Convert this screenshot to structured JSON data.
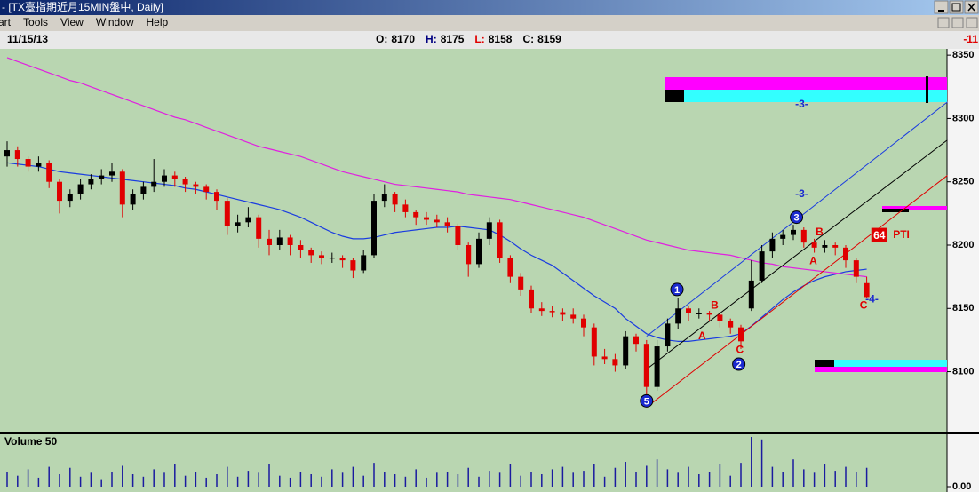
{
  "window": {
    "title": "- [TX臺指期近月15MIN盤中, Daily]",
    "menu": [
      "art",
      "Tools",
      "View",
      "Window",
      "Help"
    ],
    "info": {
      "date": "11/15/13",
      "fields": [
        {
          "label": "O:",
          "value": 8170,
          "color": "#000000"
        },
        {
          "label": "H:",
          "value": 8175,
          "color": "#000080"
        },
        {
          "label": "L:",
          "value": 8158,
          "color": "#e00000"
        },
        {
          "label": "C:",
          "value": 8159,
          "color": "#000000"
        }
      ],
      "change": -11
    }
  },
  "chart_data": {
    "type": "candlestick",
    "up_color": "#000000",
    "down_color": "#e00000",
    "ohlc": [
      [
        8270,
        8282,
        8262,
        8275
      ],
      [
        8275,
        8278,
        8262,
        8268
      ],
      [
        8268,
        8270,
        8258,
        8262
      ],
      [
        8262,
        8270,
        8258,
        8265
      ],
      [
        8265,
        8267,
        8245,
        8250
      ],
      [
        8250,
        8252,
        8225,
        8235
      ],
      [
        8235,
        8244,
        8230,
        8240
      ],
      [
        8240,
        8252,
        8236,
        8248
      ],
      [
        8248,
        8256,
        8244,
        8252
      ],
      [
        8252,
        8260,
        8248,
        8255
      ],
      [
        8255,
        8265,
        8250,
        8258
      ],
      [
        8258,
        8260,
        8222,
        8232
      ],
      [
        8232,
        8244,
        8228,
        8240
      ],
      [
        8240,
        8250,
        8236,
        8246
      ],
      [
        8246,
        8268,
        8242,
        8250
      ],
      [
        8250,
        8260,
        8246,
        8255
      ],
      [
        8255,
        8258,
        8246,
        8252
      ],
      [
        8252,
        8254,
        8242,
        8248
      ],
      [
        8248,
        8250,
        8240,
        8246
      ],
      [
        8246,
        8248,
        8236,
        8242
      ],
      [
        8242,
        8244,
        8228,
        8235
      ],
      [
        8235,
        8237,
        8208,
        8215
      ],
      [
        8215,
        8224,
        8210,
        8218
      ],
      [
        8218,
        8230,
        8214,
        8222
      ],
      [
        8222,
        8224,
        8198,
        8205
      ],
      [
        8205,
        8212,
        8192,
        8200
      ],
      [
        8200,
        8212,
        8196,
        8206
      ],
      [
        8206,
        8208,
        8192,
        8200
      ],
      [
        8200,
        8204,
        8190,
        8196
      ],
      [
        8196,
        8198,
        8186,
        8192
      ],
      [
        8192,
        8195,
        8185,
        8190
      ],
      [
        8190,
        8194,
        8186,
        8190
      ],
      [
        8190,
        8192,
        8182,
        8188
      ],
      [
        8188,
        8190,
        8174,
        8180
      ],
      [
        8180,
        8196,
        8178,
        8192
      ],
      [
        8192,
        8240,
        8190,
        8235
      ],
      [
        8235,
        8248,
        8230,
        8240
      ],
      [
        8240,
        8242,
        8226,
        8232
      ],
      [
        8232,
        8236,
        8222,
        8226
      ],
      [
        8226,
        8228,
        8216,
        8222
      ],
      [
        8222,
        8226,
        8216,
        8220
      ],
      [
        8220,
        8224,
        8214,
        8218
      ],
      [
        8218,
        8222,
        8210,
        8215
      ],
      [
        8215,
        8217,
        8196,
        8200
      ],
      [
        8200,
        8202,
        8175,
        8185
      ],
      [
        8185,
        8210,
        8182,
        8205
      ],
      [
        8205,
        8222,
        8200,
        8218
      ],
      [
        8218,
        8220,
        8186,
        8190
      ],
      [
        8190,
        8192,
        8170,
        8175
      ],
      [
        8175,
        8178,
        8160,
        8165
      ],
      [
        8165,
        8168,
        8146,
        8150
      ],
      [
        8150,
        8155,
        8144,
        8148
      ],
      [
        8148,
        8152,
        8143,
        8147
      ],
      [
        8147,
        8150,
        8140,
        8145
      ],
      [
        8145,
        8150,
        8138,
        8142
      ],
      [
        8142,
        8145,
        8128,
        8135
      ],
      [
        8135,
        8138,
        8105,
        8112
      ],
      [
        8112,
        8118,
        8106,
        8110
      ],
      [
        8110,
        8114,
        8100,
        8105
      ],
      [
        8105,
        8132,
        8102,
        8128
      ],
      [
        8128,
        8130,
        8116,
        8122
      ],
      [
        8122,
        8125,
        8075,
        8088
      ],
      [
        8088,
        8125,
        8085,
        8120
      ],
      [
        8120,
        8142,
        8116,
        8138
      ],
      [
        8138,
        8158,
        8134,
        8150
      ],
      [
        8150,
        8152,
        8140,
        8146
      ],
      [
        8146,
        8150,
        8142,
        8146
      ],
      [
        8146,
        8148,
        8140,
        8145
      ],
      [
        8145,
        8147,
        8135,
        8140
      ],
      [
        8140,
        8142,
        8130,
        8135
      ],
      [
        8135,
        8137,
        8118,
        8124
      ],
      [
        8150,
        8188,
        8148,
        8172
      ],
      [
        8172,
        8200,
        8170,
        8195
      ],
      [
        8195,
        8210,
        8190,
        8205
      ],
      [
        8205,
        8212,
        8200,
        8208
      ],
      [
        8208,
        8216,
        8204,
        8212
      ],
      [
        8212,
        8214,
        8198,
        8202
      ],
      [
        8202,
        8205,
        8194,
        8198
      ],
      [
        8198,
        8204,
        8194,
        8200
      ],
      [
        8200,
        8202,
        8192,
        8198
      ],
      [
        8198,
        8200,
        8182,
        8188
      ],
      [
        8188,
        8190,
        8170,
        8175
      ],
      [
        8170,
        8175,
        8158,
        8159
      ]
    ],
    "ylim": [
      8052,
      8355
    ],
    "yticks": [
      8100,
      8150,
      8200,
      8250,
      8300,
      8350
    ],
    "moving_averages": [
      {
        "color": "#1a3ce0",
        "values": [
          8265,
          8264,
          8263,
          8262,
          8260,
          8258,
          8257,
          8256,
          8255,
          8254,
          8253,
          8252,
          8251,
          8250,
          8249,
          8248,
          8247,
          8245,
          8244,
          8242,
          8240,
          8238,
          8236,
          8234,
          8232,
          8230,
          8228,
          8225,
          8222,
          8218,
          8214,
          8210,
          8207,
          8205,
          8205,
          8206,
          8208,
          8210,
          8211,
          8212,
          8213,
          8214,
          8214,
          8215,
          8214,
          8213,
          8212,
          8208,
          8203,
          8197,
          8192,
          8188,
          8184,
          8178,
          8172,
          8166,
          8160,
          8155,
          8150,
          8142,
          8136,
          8130,
          8127,
          8125,
          8124,
          8124,
          8125,
          8126,
          8127,
          8128,
          8130,
          8136,
          8143,
          8150,
          8157,
          8163,
          8168,
          8172,
          8175,
          8177,
          8179,
          8180,
          8181
        ]
      },
      {
        "color": "#e020e0",
        "values": [
          8348,
          8345,
          8342,
          8339,
          8336,
          8333,
          8330,
          8328,
          8325,
          8322,
          8319,
          8316,
          8313,
          8310,
          8307,
          8304,
          8301,
          8299,
          8296,
          8293,
          8290,
          8287,
          8284,
          8281,
          8278,
          8276,
          8274,
          8272,
          8270,
          8267,
          8264,
          8261,
          8258,
          8256,
          8254,
          8252,
          8250,
          8248,
          8247,
          8246,
          8245,
          8244,
          8243,
          8242,
          8240,
          8239,
          8238,
          8237,
          8236,
          8234,
          8232,
          8230,
          8228,
          8226,
          8224,
          8222,
          8219,
          8216,
          8213,
          8210,
          8207,
          8204,
          8202,
          8200,
          8198,
          8196,
          8195,
          8194,
          8193,
          8192,
          8190,
          8188,
          8186,
          8185,
          8183,
          8182,
          8181,
          8180,
          8179,
          8178,
          8177,
          8176,
          8175
        ]
      }
    ],
    "trendlines": [
      {
        "color": "#1a3ce0",
        "points": [
          [
            61,
            8128
          ],
          [
            89.7,
            8313
          ]
        ]
      },
      {
        "color": "#000000",
        "points": [
          [
            61,
            8102
          ],
          [
            89.7,
            8283
          ]
        ]
      },
      {
        "color": "#e00000",
        "points": [
          [
            61,
            8072
          ],
          [
            89.7,
            8255
          ]
        ]
      }
    ],
    "annotations": [
      {
        "text": "1",
        "x": 63.9,
        "y": 8165,
        "style": "circle",
        "color": "#1a2ad0"
      },
      {
        "text": "2",
        "x": 69.8,
        "y": 8106,
        "style": "circle",
        "color": "#1a2ad0"
      },
      {
        "text": "3",
        "x": 75.3,
        "y": 8222,
        "style": "circle",
        "color": "#1a2ad0"
      },
      {
        "text": "5",
        "x": 61,
        "y": 8077,
        "style": "circle",
        "color": "#1a2ad0"
      },
      {
        "text": "A",
        "x": 66.3,
        "y": 8128,
        "style": "text",
        "color": "#e00000"
      },
      {
        "text": "B",
        "x": 67.5,
        "y": 8152,
        "style": "text",
        "color": "#e00000"
      },
      {
        "text": "C",
        "x": 69.9,
        "y": 8117,
        "style": "text",
        "color": "#e00000"
      },
      {
        "text": "A",
        "x": 76.9,
        "y": 8187,
        "style": "text",
        "color": "#e00000"
      },
      {
        "text": "B",
        "x": 77.5,
        "y": 8210,
        "style": "text",
        "color": "#e00000"
      },
      {
        "text": "C",
        "x": 81.7,
        "y": 8152,
        "style": "text",
        "color": "#e00000"
      },
      {
        "text": "-3-",
        "x": 75.8,
        "y": 8311,
        "style": "text",
        "color": "#1a2ad0"
      },
      {
        "text": "-3-",
        "x": 75.8,
        "y": 8240,
        "style": "text",
        "color": "#1a2ad0"
      },
      {
        "text": "-4-",
        "x": 82.5,
        "y": 8157,
        "style": "text",
        "color": "#1a2ad0"
      },
      {
        "text": "64",
        "x": 83.2,
        "y": 8208,
        "style": "box",
        "color": "#e00000"
      },
      {
        "text": "PTI",
        "x": 85.3,
        "y": 8208,
        "style": "text",
        "color": "#e00000"
      }
    ],
    "volume": {
      "title": "Volume 50",
      "color": "#1a1aa0",
      "ylim": [
        0,
        100
      ],
      "yticks": [
        {
          "value": 0,
          "label": "0.00"
        }
      ],
      "values": [
        30,
        22,
        35,
        18,
        40,
        25,
        38,
        20,
        28,
        15,
        30,
        42,
        25,
        20,
        35,
        28,
        45,
        22,
        30,
        18,
        25,
        40,
        20,
        32,
        28,
        45,
        22,
        18,
        30,
        25,
        20,
        35,
        28,
        40,
        22,
        48,
        30,
        25,
        20,
        35,
        18,
        28,
        30,
        25,
        38,
        20,
        32,
        28,
        45,
        22,
        30,
        25,
        35,
        40,
        28,
        32,
        45,
        20,
        38,
        50,
        30,
        42,
        55,
        35,
        28,
        40,
        25,
        30,
        45,
        22,
        48,
        100,
        95,
        40,
        30,
        55,
        35,
        28,
        45,
        32,
        40,
        30,
        38
      ]
    }
  }
}
